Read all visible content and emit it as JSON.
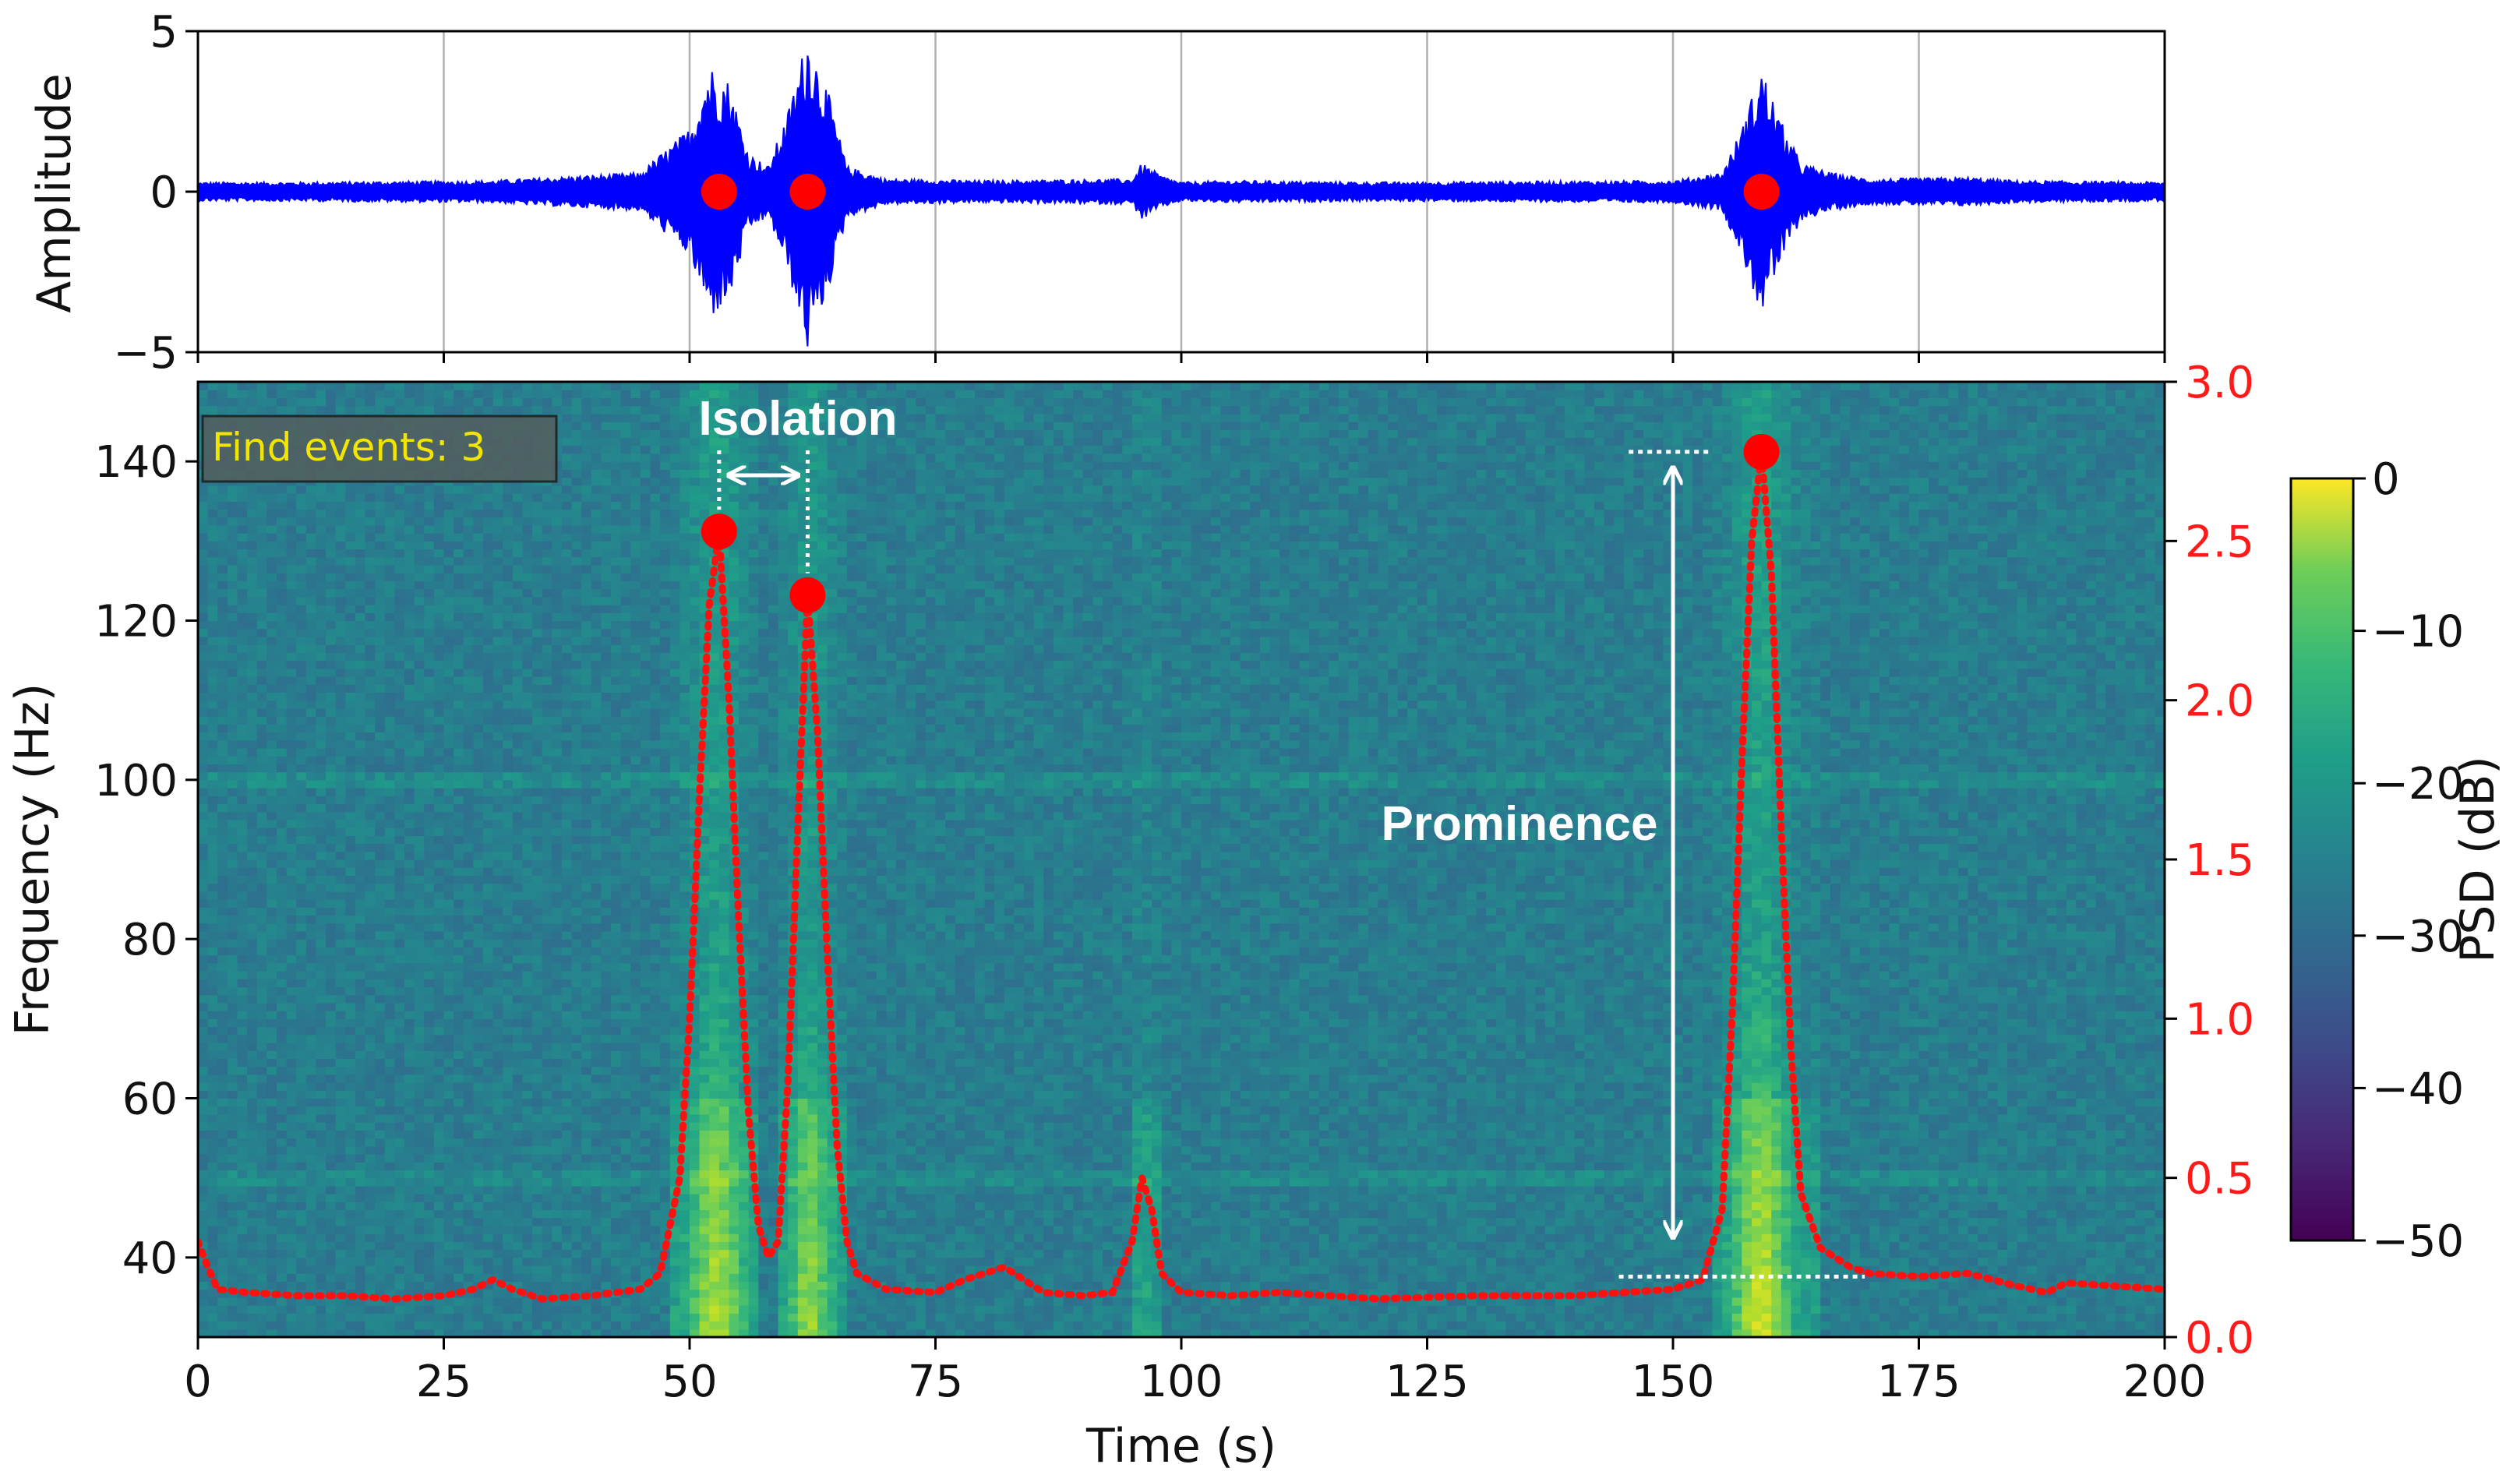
{
  "chart_data": [
    {
      "type": "line",
      "panel": "waveform",
      "ylabel": "Amplitude",
      "xlim": [
        0,
        200
      ],
      "ylim": [
        -5,
        5
      ],
      "yticks": [
        5,
        0,
        -5
      ],
      "grid": "vertical",
      "series": [
        {
          "color": "#0000ff",
          "description_envelope": [
            [
              0,
              0.3
            ],
            [
              10,
              0.3
            ],
            [
              30,
              0.35
            ],
            [
              45,
              0.6
            ],
            [
              50,
              2.0
            ],
            [
              52,
              4.0
            ],
            [
              54,
              3.5
            ],
            [
              56,
              1.2
            ],
            [
              58,
              0.8
            ],
            [
              60,
              2.5
            ],
            [
              62,
              5.0
            ],
            [
              64,
              3.2
            ],
            [
              66,
              0.8
            ],
            [
              70,
              0.4
            ],
            [
              80,
              0.35
            ],
            [
              95,
              0.4
            ],
            [
              96,
              0.9
            ],
            [
              98,
              0.5
            ],
            [
              100,
              0.3
            ],
            [
              105,
              0.35
            ],
            [
              120,
              0.3
            ],
            [
              150,
              0.35
            ],
            [
              155,
              0.6
            ],
            [
              157,
              2.0
            ],
            [
              159,
              3.9
            ],
            [
              161,
              2.2
            ],
            [
              163,
              0.9
            ],
            [
              166,
              0.6
            ],
            [
              170,
              0.4
            ],
            [
              180,
              0.45
            ],
            [
              185,
              0.35
            ],
            [
              200,
              0.3
            ]
          ]
        }
      ],
      "markers": {
        "color": "#ff0000",
        "x": [
          53,
          62,
          159
        ],
        "y": [
          0,
          0,
          0
        ]
      }
    },
    {
      "type": "heatmap",
      "panel": "spectrogram",
      "xlabel": "Time (s)",
      "ylabel": "Frequency (Hz)",
      "xlim": [
        0,
        200
      ],
      "ylim": [
        30,
        150
      ],
      "xticks": [
        0,
        25,
        50,
        75,
        100,
        125,
        150,
        175,
        200
      ],
      "yticks": [
        40,
        60,
        80,
        100,
        120,
        140
      ],
      "colormap": "viridis",
      "colorbar": {
        "label": "PSD (dB)",
        "range": [
          -50,
          0
        ],
        "ticks": [
          "0",
          "−10",
          "−20",
          "−30",
          "−40",
          "−50"
        ]
      },
      "secondary_axis": {
        "ylim": [
          0.0,
          3.0
        ],
        "ticks": [
          "3.0",
          "2.5",
          "2.0",
          "1.5",
          "1.0",
          "0.5",
          "0.0"
        ],
        "color": "#ff1a1a"
      },
      "characteristic_function": {
        "color": "#ff0000",
        "style": "dotted",
        "points": [
          [
            0,
            0.3
          ],
          [
            1,
            0.22
          ],
          [
            2,
            0.15
          ],
          [
            5,
            0.14
          ],
          [
            10,
            0.13
          ],
          [
            15,
            0.13
          ],
          [
            20,
            0.12
          ],
          [
            25,
            0.13
          ],
          [
            28,
            0.15
          ],
          [
            30,
            0.18
          ],
          [
            32,
            0.15
          ],
          [
            35,
            0.12
          ],
          [
            40,
            0.13
          ],
          [
            45,
            0.15
          ],
          [
            47,
            0.2
          ],
          [
            49,
            0.5
          ],
          [
            50,
            1.0
          ],
          [
            51,
            1.7
          ],
          [
            52,
            2.3
          ],
          [
            53,
            2.53
          ],
          [
            54,
            2.0
          ],
          [
            55,
            1.3
          ],
          [
            56,
            0.7
          ],
          [
            57,
            0.35
          ],
          [
            58,
            0.25
          ],
          [
            59,
            0.3
          ],
          [
            60,
            0.8
          ],
          [
            61,
            1.6
          ],
          [
            62,
            2.33
          ],
          [
            63,
            1.9
          ],
          [
            64,
            1.2
          ],
          [
            65,
            0.6
          ],
          [
            66,
            0.3
          ],
          [
            67,
            0.2
          ],
          [
            70,
            0.15
          ],
          [
            75,
            0.14
          ],
          [
            78,
            0.18
          ],
          [
            80,
            0.2
          ],
          [
            82,
            0.22
          ],
          [
            84,
            0.18
          ],
          [
            86,
            0.14
          ],
          [
            90,
            0.13
          ],
          [
            93,
            0.14
          ],
          [
            95,
            0.3
          ],
          [
            96,
            0.5
          ],
          [
            97,
            0.4
          ],
          [
            98,
            0.2
          ],
          [
            100,
            0.14
          ],
          [
            105,
            0.13
          ],
          [
            110,
            0.14
          ],
          [
            120,
            0.12
          ],
          [
            130,
            0.13
          ],
          [
            140,
            0.13
          ],
          [
            145,
            0.14
          ],
          [
            150,
            0.15
          ],
          [
            153,
            0.18
          ],
          [
            155,
            0.4
          ],
          [
            156,
            1.0
          ],
          [
            157,
            1.8
          ],
          [
            158,
            2.5
          ],
          [
            159,
            2.78
          ],
          [
            160,
            2.4
          ],
          [
            161,
            1.6
          ],
          [
            162,
            0.9
          ],
          [
            163,
            0.45
          ],
          [
            165,
            0.28
          ],
          [
            168,
            0.22
          ],
          [
            170,
            0.2
          ],
          [
            175,
            0.19
          ],
          [
            180,
            0.2
          ],
          [
            185,
            0.16
          ],
          [
            188,
            0.14
          ],
          [
            190,
            0.17
          ],
          [
            195,
            0.16
          ],
          [
            200,
            0.15
          ]
        ]
      },
      "peaks": {
        "color": "#ff0000",
        "x": [
          53,
          62,
          159
        ],
        "y": [
          2.53,
          2.33,
          2.78
        ]
      },
      "annotations": {
        "badge": "Find events: 3",
        "isolation": "Isolation",
        "prominence": "Prominence"
      }
    }
  ]
}
